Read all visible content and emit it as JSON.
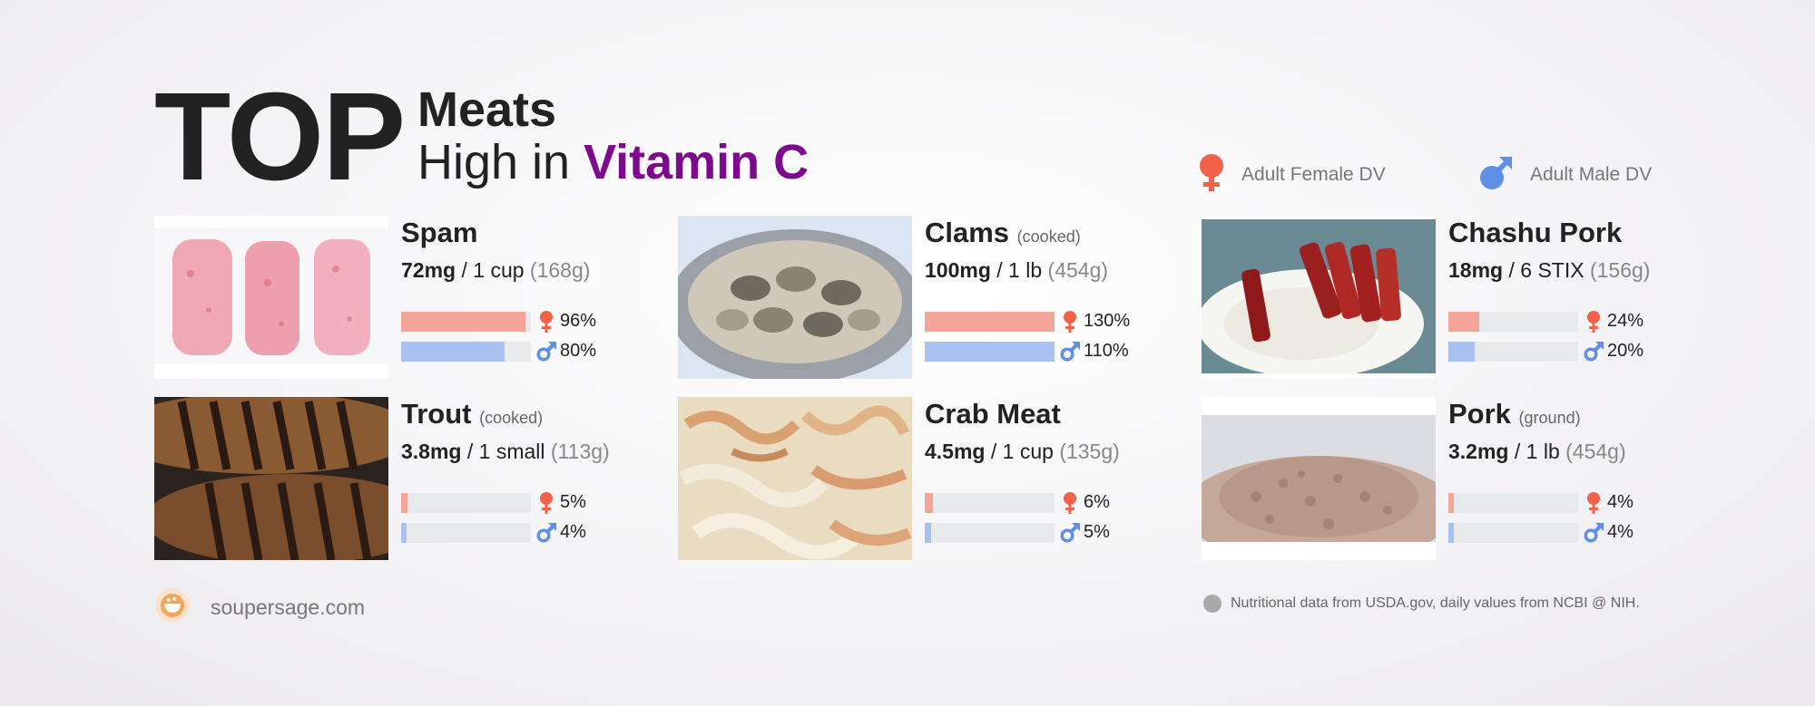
{
  "header": {
    "top_word": "TOP",
    "category": "Meats",
    "prefix": "High in ",
    "nutrient": "Vitamin C",
    "nutrient_color": "#7d0a8c"
  },
  "legend": {
    "female_label": "Adult Female DV",
    "male_label": "Adult Male DV",
    "female_color": "#f2614a",
    "male_color": "#5f8fe6"
  },
  "foods": [
    {
      "name": "Spam",
      "note": "",
      "mg": "72mg",
      "serving": " / 1 cup ",
      "grams": "(168g)",
      "female_pct": "96%",
      "male_pct": "80%",
      "female_fill": 0.96,
      "male_fill": 0.8,
      "photo": "spam-slices-image"
    },
    {
      "name": "Clams",
      "note": "(cooked)",
      "mg": "100mg",
      "serving": " / 1 lb ",
      "grams": "(454g)",
      "female_pct": "130%",
      "male_pct": "110%",
      "female_fill": 1.0,
      "male_fill": 1.0,
      "photo": "clams-pot-image"
    },
    {
      "name": "Chashu Pork",
      "note": "",
      "mg": "18mg",
      "serving": " / 6 STIX ",
      "grams": "(156g)",
      "female_pct": "24%",
      "male_pct": "20%",
      "female_fill": 0.24,
      "male_fill": 0.2,
      "photo": "chashu-pork-image"
    },
    {
      "name": "Trout",
      "note": "(cooked)",
      "mg": "3.8mg",
      "serving": " / 1 small ",
      "grams": "(113g)",
      "female_pct": "5%",
      "male_pct": "4%",
      "female_fill": 0.05,
      "male_fill": 0.04,
      "photo": "grilled-trout-image"
    },
    {
      "name": "Crab Meat",
      "note": "",
      "mg": "4.5mg",
      "serving": " / 1 cup ",
      "grams": "(135g)",
      "female_pct": "6%",
      "male_pct": "5%",
      "female_fill": 0.06,
      "male_fill": 0.05,
      "photo": "crab-meat-image"
    },
    {
      "name": "Pork",
      "note": "(ground)",
      "mg": "3.2mg",
      "serving": " / 1 lb ",
      "grams": "(454g)",
      "female_pct": "4%",
      "male_pct": "4%",
      "female_fill": 0.04,
      "male_fill": 0.04,
      "photo": "ground-pork-image"
    }
  ],
  "footer": {
    "site": "soupersage.com",
    "source": "Nutritional data from USDA.gov, daily values from NCBI @ NIH."
  }
}
